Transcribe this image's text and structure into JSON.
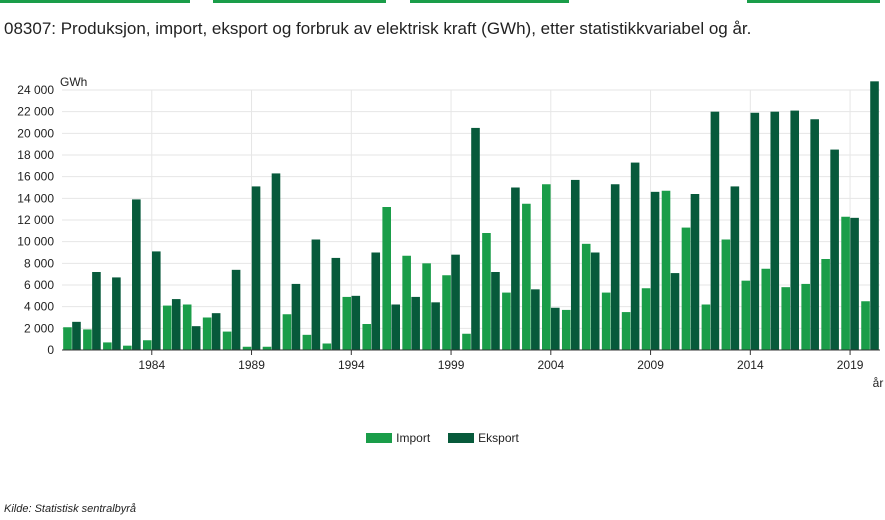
{
  "title": "08307: Produksjon, import, eksport og forbruk av elektrisk kraft (GWh), etter statistikkvariabel og år.",
  "source": "Kilde:  Statistisk sentralbyrå",
  "colors": {
    "import": "#1a9d49",
    "eksport": "#075a3b",
    "tab": "#1a9d49",
    "grid": "#e6e6e6"
  },
  "chart_data": {
    "type": "bar",
    "title": "08307: Produksjon, import, eksport og forbruk av elektrisk kraft (GWh), etter statistikkvariabel og år.",
    "ylabel": "GWh",
    "xlabel": "år",
    "ylim": [
      0,
      24000
    ],
    "yticks": [
      0,
      2000,
      4000,
      6000,
      8000,
      10000,
      12000,
      14000,
      16000,
      18000,
      20000,
      22000,
      24000
    ],
    "ytick_labels": [
      "0",
      "2 000",
      "4 000",
      "6 000",
      "8 000",
      "10 000",
      "12 000",
      "14 000",
      "16 000",
      "18 000",
      "20 000",
      "22 000",
      "24 000"
    ],
    "xtick_labels": [
      "1984",
      "1989",
      "1994",
      "1999",
      "2004",
      "2009",
      "2014",
      "2019"
    ],
    "grid": true,
    "legend_position": "bottom",
    "categories": [
      "1980",
      "1981",
      "1982",
      "1983",
      "1984",
      "1985",
      "1986",
      "1987",
      "1988",
      "1989",
      "1990",
      "1991",
      "1992",
      "1993",
      "1994",
      "1995",
      "1996",
      "1997",
      "1998",
      "1999",
      "2000",
      "2001",
      "2002",
      "2003",
      "2004",
      "2005",
      "2006",
      "2007",
      "2008",
      "2009",
      "2010",
      "2011",
      "2012",
      "2013",
      "2014",
      "2015",
      "2016",
      "2017",
      "2018",
      "2019",
      "2020"
    ],
    "series": [
      {
        "name": "Import",
        "values": [
          2100,
          1900,
          700,
          400,
          900,
          4100,
          4200,
          3000,
          1700,
          300,
          300,
          3300,
          1400,
          600,
          4900,
          2400,
          13200,
          8700,
          8000,
          6900,
          1500,
          10800,
          5300,
          13500,
          15300,
          3700,
          9800,
          5300,
          3500,
          5700,
          14700,
          11300,
          4200,
          10200,
          6400,
          7500,
          5800,
          6100,
          8400,
          12300,
          4500
        ]
      },
      {
        "name": "Eksport",
        "values": [
          2600,
          7200,
          6700,
          13900,
          9100,
          4700,
          2200,
          3400,
          7400,
          15100,
          16300,
          6100,
          10200,
          8500,
          5000,
          9000,
          4200,
          4900,
          4400,
          8800,
          20500,
          7200,
          15000,
          5600,
          3900,
          15700,
          9000,
          15300,
          17300,
          14600,
          7100,
          14400,
          22000,
          15100,
          21900,
          22000,
          22100,
          21300,
          18500,
          12200,
          24800
        ]
      }
    ]
  },
  "legend": {
    "import_label": "Import",
    "eksport_label": "Eksport"
  }
}
